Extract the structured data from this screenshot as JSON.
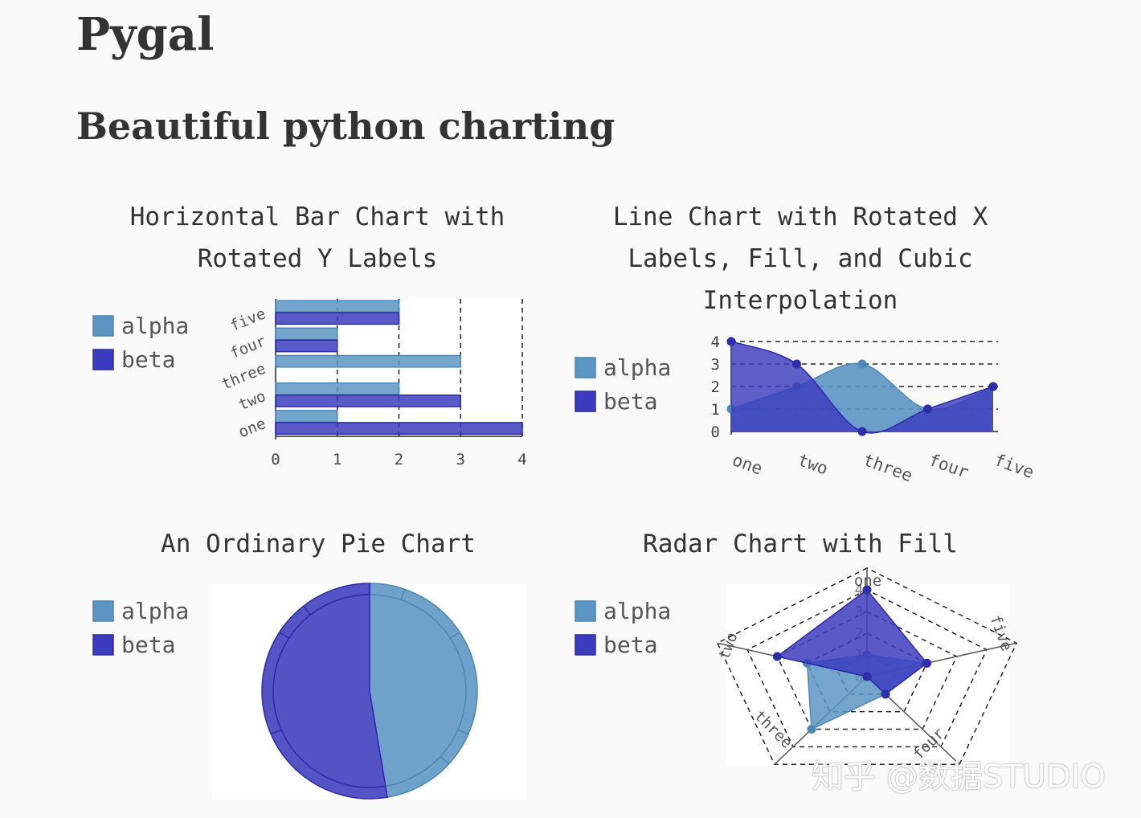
{
  "page": {
    "title": "Pygal",
    "subtitle": "Beautiful python charting",
    "watermark": "知乎 @数据STUDIO"
  },
  "colors": {
    "alpha": "#5b95c4",
    "beta": "#3c3cbe",
    "alphaStroke": "#4d86b5",
    "betaStroke": "#2b2ba8"
  },
  "chart_data": [
    {
      "type": "bar",
      "orientation": "horizontal",
      "title": [
        "Horizontal Bar Chart with",
        "Rotated Y Labels"
      ],
      "categories": [
        "one",
        "two",
        "three",
        "four",
        "five"
      ],
      "series": [
        {
          "name": "alpha",
          "values": [
            1,
            2,
            3,
            1,
            2
          ]
        },
        {
          "name": "beta",
          "values": [
            4,
            3,
            null,
            1,
            2
          ]
        }
      ],
      "xlim": [
        0,
        4
      ],
      "ticks": [
        "0",
        "1",
        "2",
        "3",
        "4"
      ],
      "legend": "left"
    },
    {
      "type": "line",
      "title": [
        "Line Chart with Rotated X",
        "Labels, Fill, and Cubic",
        "Interpolation"
      ],
      "categories": [
        "one",
        "two",
        "three",
        "four",
        "five"
      ],
      "series": [
        {
          "name": "alpha",
          "values": [
            1,
            2,
            3,
            1,
            2
          ]
        },
        {
          "name": "beta",
          "values": [
            4,
            3,
            0,
            1,
            2
          ]
        }
      ],
      "ylim": [
        0,
        4
      ],
      "ticks": [
        "0",
        "1",
        "2",
        "3",
        "4"
      ],
      "fill": true,
      "interpolation": "cubic",
      "legend": "left"
    },
    {
      "type": "pie",
      "title": [
        "An Ordinary Pie Chart"
      ],
      "series": [
        {
          "name": "alpha",
          "values": [
            1,
            2,
            3,
            1,
            2
          ]
        },
        {
          "name": "beta",
          "values": [
            4,
            3,
            0,
            1,
            2
          ]
        }
      ],
      "legend": "left"
    },
    {
      "type": "radar",
      "title": [
        "Radar Chart with Fill"
      ],
      "categories": [
        "one",
        "two",
        "three",
        "four",
        "five"
      ],
      "series": [
        {
          "name": "alpha",
          "values": [
            1,
            2,
            3,
            1,
            2
          ]
        },
        {
          "name": "beta",
          "values": [
            4,
            3,
            0,
            1,
            2
          ]
        }
      ],
      "rlim": [
        0,
        4
      ],
      "ticks": [
        "0",
        "1",
        "2",
        "3",
        "4"
      ],
      "fill": true,
      "legend": "left"
    }
  ]
}
